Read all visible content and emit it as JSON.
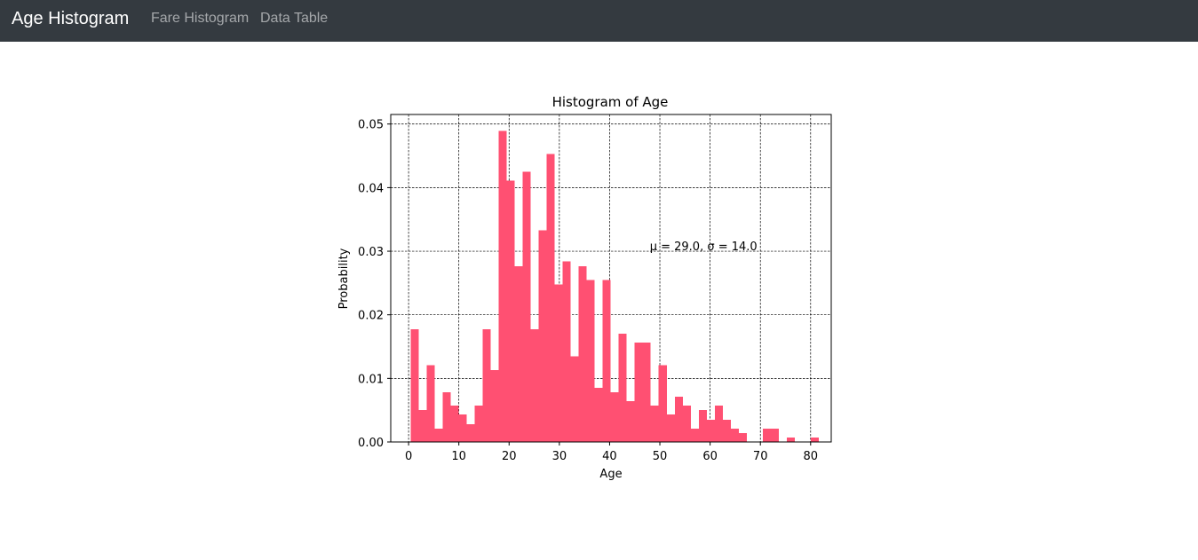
{
  "navbar": {
    "brand": "Age Histogram",
    "links": [
      {
        "label": "Fare Histogram"
      },
      {
        "label": "Data Table"
      }
    ],
    "background": "#343a40"
  },
  "chart_data": {
    "type": "bar",
    "title": "Histogram of Age",
    "xlabel": "Age",
    "ylabel": "Probability",
    "annotation": "μ = 29.0,  σ = 14.0",
    "annotation_position": {
      "x": 48,
      "y": 0.03
    },
    "bar_color": "#ff5072",
    "xlim": [
      -3.55,
      84.1
    ],
    "ylim": [
      0,
      0.0515
    ],
    "xticks": [
      0,
      10,
      20,
      30,
      40,
      50,
      60,
      70,
      80
    ],
    "xtick_labels": [
      "0",
      "10",
      "20",
      "30",
      "40",
      "50",
      "60",
      "70",
      "80"
    ],
    "yticks": [
      0,
      0.01,
      0.02,
      0.03,
      0.04,
      0.05
    ],
    "ytick_labels": [
      "0.00",
      "0.01",
      "0.02",
      "0.03",
      "0.04",
      "0.05"
    ],
    "grid": true,
    "bin_start": 0.42,
    "bin_width": 1.592,
    "values": [
      0.0177,
      0.005,
      0.0121,
      0.0021,
      0.0078,
      0.0057,
      0.0043,
      0.0028,
      0.0057,
      0.0177,
      0.0113,
      0.0489,
      0.0411,
      0.0276,
      0.0425,
      0.0177,
      0.0333,
      0.0453,
      0.0248,
      0.0284,
      0.0135,
      0.0276,
      0.0255,
      0.0085,
      0.0255,
      0.0078,
      0.017,
      0.0064,
      0.0156,
      0.0156,
      0.0057,
      0.0121,
      0.0043,
      0.0071,
      0.0057,
      0.0021,
      0.005,
      0.0035,
      0.0057,
      0.0035,
      0.0021,
      0.0014,
      0.0,
      0.0,
      0.0021,
      0.0021,
      0.0,
      0.0007,
      0.0,
      0.0,
      0.0007
    ]
  }
}
